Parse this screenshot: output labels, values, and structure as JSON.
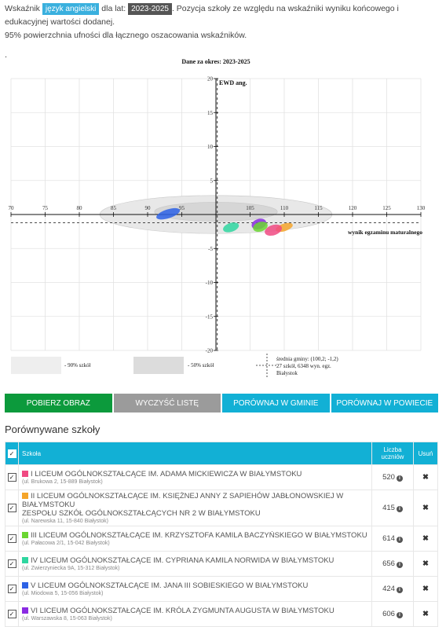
{
  "intro": {
    "prefix": "Wskaźnik",
    "indicator": "język angielski",
    "for_years": "dla lat:",
    "period": "2023-2025",
    "description": ". Pozycja szkoły ze względu na wskaźniki wyniku końcowego i edukacyjnej wartości dodanej.",
    "confidence": "95% powierzchnia ufności dla łącznego oszacowania wskaźników.",
    "dot": "."
  },
  "chart_data": {
    "type": "scatter",
    "title": "Dane za okres: 2023-2025",
    "xlabel": "wynik egzaminu maturalnego",
    "ylabel": "EWD ang.",
    "xlim": [
      70,
      130
    ],
    "ylim": [
      -20,
      20
    ],
    "x_ticks": [
      70,
      75,
      80,
      85,
      90,
      95,
      100,
      105,
      110,
      115,
      120,
      125,
      130
    ],
    "y_ticks": [
      20,
      15,
      10,
      5,
      0,
      -5,
      -10,
      -15,
      -20
    ],
    "gmina_mean": {
      "x": 100.2,
      "y": -1.2
    },
    "regions": [
      {
        "name": "90% szkół",
        "cx": 100,
        "cy": 0,
        "rx": 17,
        "ry": 2.8,
        "color": "#e8e8e8"
      },
      {
        "name": "50% szkół",
        "cx": 100,
        "cy": 0.4,
        "rx": 9,
        "ry": 1.4,
        "color": "#d6d6d6"
      }
    ],
    "series": [
      {
        "x": 93.0,
        "y": 0.1,
        "rx": 1.8,
        "ry": 0.65,
        "color": "#2d62e6"
      },
      {
        "x": 110.0,
        "y": -1.9,
        "rx": 1.3,
        "ry": 0.55,
        "color": "#f5a52a"
      },
      {
        "x": 102.2,
        "y": -1.9,
        "rx": 1.2,
        "ry": 0.65,
        "color": "#2fd6a0"
      },
      {
        "x": 108.4,
        "y": -2.3,
        "rx": 1.3,
        "ry": 0.75,
        "color": "#f04a82"
      },
      {
        "x": 106.3,
        "y": -1.4,
        "rx": 1.1,
        "ry": 0.75,
        "color": "#8a2be2"
      },
      {
        "x": 106.5,
        "y": -1.8,
        "rx": 1.1,
        "ry": 0.7,
        "color": "#6ad631"
      }
    ],
    "legend": {
      "p90": "- 90% szkół",
      "p50": "- 50% szkół",
      "mean_line1": "średnia gminy: (100,2; -1,2)",
      "mean_line2": "27 szkół, 6348 wyn. egz.",
      "mean_line3": "Białystok"
    }
  },
  "buttons": [
    {
      "label": "Pobierz obraz",
      "color": "#0c9a3c"
    },
    {
      "label": "Wyczyść listę",
      "color": "#9b9b9b"
    },
    {
      "label": "Porównaj w gminie",
      "color": "#12b0d5"
    },
    {
      "label": "Porównaj w powiecie",
      "color": "#12b0d5"
    }
  ],
  "section_title": "Porównywane szkoły",
  "table": {
    "col_school": "Szkoła",
    "col_count": "Liczba uczniów",
    "col_remove": "Usuń",
    "rows": [
      {
        "color": "#f04a82",
        "name": "I LICEUM OGÓLNOKSZTAŁCĄCE IM. ADAMA MICKIEWICZA W BIAŁYMSTOKU",
        "name2": "",
        "address": "(ul. Brukowa 2, 15-889 Białystok)",
        "count": "520"
      },
      {
        "color": "#f5a52a",
        "name": "II LICEUM OGÓLNOKSZTAŁCĄCE IM. KSIĘŻNEJ ANNY Z SAPIEHÓW JABŁONOWSKIEJ W BIAŁYMSTOKU",
        "name2": "ZESPOŁU SZKÓŁ OGÓLNOKSZTAŁCĄCYCH NR 2 W BIAŁYMSTOKU",
        "address": "(ul. Narewska 11, 15-840 Białystok)",
        "count": "415"
      },
      {
        "color": "#6ad631",
        "name": "III LICEUM OGÓLNOKSZTAŁCĄCE IM. KRZYSZTOFA KAMILA BACZYŃSKIEGO W BIAŁYMSTOKU",
        "name2": "",
        "address": "(ul. Pałacowa 2/1, 15-042 Białystok)",
        "count": "614"
      },
      {
        "color": "#2fd6a0",
        "name": "IV LICEUM OGÓLNOKSZTAŁCĄCE IM. CYPRIANA KAMILA NORWIDA W BIAŁYMSTOKU",
        "name2": "",
        "address": "(ul. Zwierzyniecka 9A, 15-312 Białystok)",
        "count": "656"
      },
      {
        "color": "#2d62e6",
        "name": "V LICEUM OGÓLNOKSZTAŁCĄCE IM. JANA III SOBIESKIEGO W BIAŁYMSTOKU",
        "name2": "",
        "address": "(ul. Miodowa 5, 15-056 Białystok)",
        "count": "424"
      },
      {
        "color": "#8a2be2",
        "name": "VI LICEUM OGÓLNOKSZTAŁCĄCE IM. KRÓLA ZYGMUNTA AUGUSTA W BIAŁYMSTOKU",
        "name2": "",
        "address": "(ul. Warszawska 8, 15-063 Białystok)",
        "count": "606"
      }
    ]
  }
}
